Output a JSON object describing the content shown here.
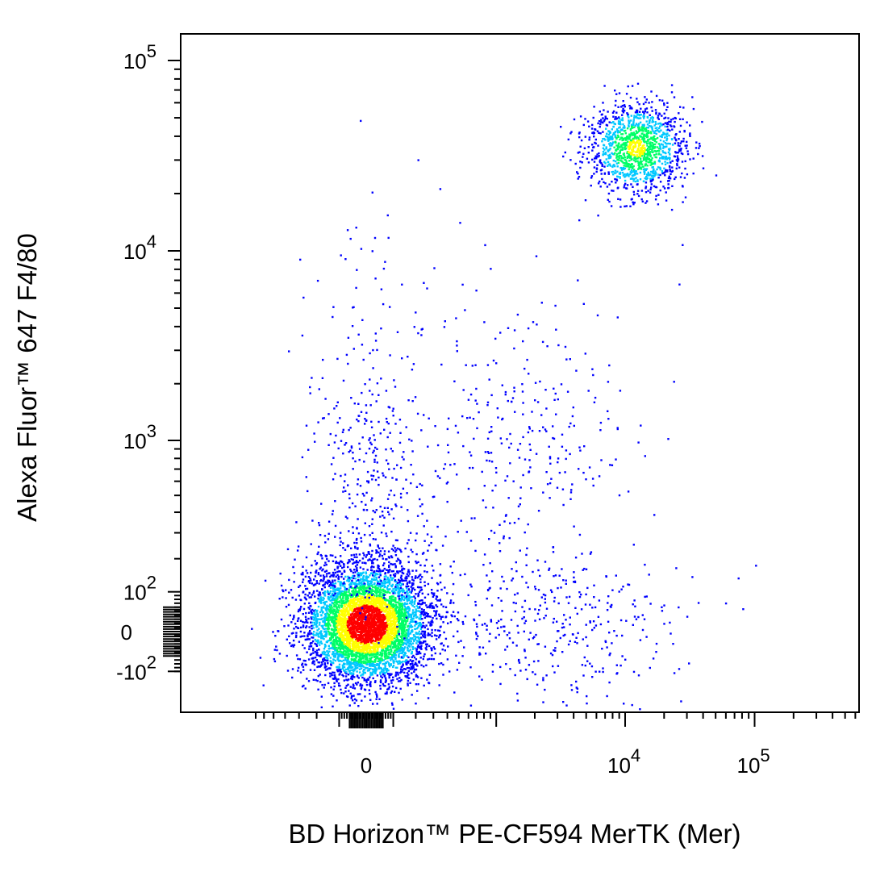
{
  "chart_data": {
    "type": "scatter",
    "subtype": "flow-cytometry-density-dot-plot",
    "xlabel": "BD Horizon™ PE-CF594 MerTK (Mer)",
    "ylabel": "Alexa Fluor™ 647 F4/80",
    "x_scale": "biexponential",
    "y_scale": "biexponential",
    "x_ticks": [
      {
        "value": 0,
        "base": "0",
        "exp": ""
      },
      {
        "value": 10000,
        "base": "10",
        "exp": "4"
      },
      {
        "value": 100000,
        "base": "10",
        "exp": "5"
      }
    ],
    "y_ticks": [
      {
        "value": -100,
        "base": "-10",
        "exp": "2"
      },
      {
        "value": 0,
        "base": "0",
        "exp": ""
      },
      {
        "value": 100,
        "base": "10",
        "exp": "2"
      },
      {
        "value": 1000,
        "base": "10",
        "exp": "3"
      },
      {
        "value": 10000,
        "base": "10",
        "exp": "4"
      },
      {
        "value": 100000,
        "base": "10",
        "exp": "5"
      }
    ],
    "xlim": [
      -700,
      250000
    ],
    "ylim": [
      -200,
      250000
    ],
    "grid": false,
    "legend": "none",
    "color_scale": [
      "#0000ff",
      "#00c8ff",
      "#00ff66",
      "#ffff00",
      "#ff0000"
    ],
    "populations": [
      {
        "name": "",
        "center": [
          0,
          20
        ],
        "spread": "high",
        "relative_size": 0.72,
        "density": "highest"
      },
      {
        "name": "",
        "center": [
          12000,
          35000
        ],
        "spread": "medium",
        "relative_size": 0.18,
        "density": "high"
      },
      {
        "name": "",
        "center": [
          2000,
          30
        ],
        "spread": "low",
        "relative_size": 0.06,
        "density": "low"
      },
      {
        "name": "",
        "center": [
          1500,
          1000
        ],
        "spread": "low",
        "relative_size": 0.04,
        "density": "low"
      }
    ]
  }
}
